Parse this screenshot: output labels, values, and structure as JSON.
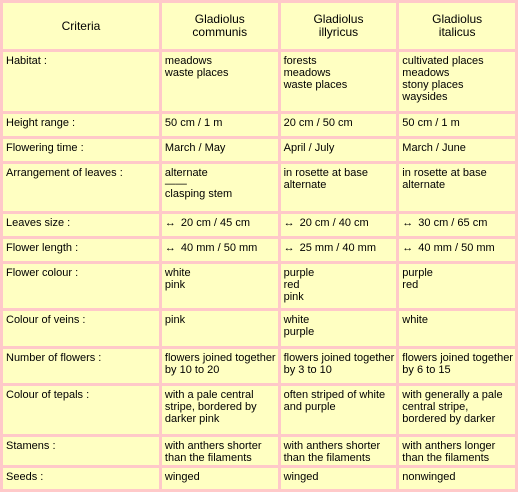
{
  "header": {
    "criteria": "Criteria",
    "species": [
      {
        "line1": "Gladiolus",
        "line2": "communis"
      },
      {
        "line1": "Gladiolus",
        "line2": "illyricus"
      },
      {
        "line1": "Gladiolus",
        "line2": "italicus"
      }
    ]
  },
  "rows": [
    {
      "label": "Habitat :",
      "values": [
        [
          "meadows",
          "waste places"
        ],
        [
          "forests",
          "meadows",
          "waste places"
        ],
        [
          "cultivated places",
          "meadows",
          "stony places",
          "waysides"
        ]
      ]
    },
    {
      "label": "Height range :",
      "values": [
        [
          "50 cm / 1 m"
        ],
        [
          "20 cm / 50 cm"
        ],
        [
          "50 cm / 1 m"
        ]
      ]
    },
    {
      "label": "Flowering time :",
      "values": [
        [
          "March / May"
        ],
        [
          "April / July"
        ],
        [
          "March / June"
        ]
      ]
    },
    {
      "label": "Arrangement of leaves :",
      "values": [
        [
          "alternate",
          "——",
          "clasping stem"
        ],
        [
          "in rosette at base",
          "alternate"
        ],
        [
          "in rosette at base",
          "alternate"
        ]
      ]
    },
    {
      "label": "Leaves size :",
      "arrow": "↔",
      "values": [
        [
          "20 cm / 45 cm"
        ],
        [
          "20 cm / 40 cm"
        ],
        [
          "30 cm / 65 cm"
        ]
      ]
    },
    {
      "label": "Flower length :",
      "arrow": "↔",
      "values": [
        [
          "40 mm / 50 mm"
        ],
        [
          "25 mm / 40 mm"
        ],
        [
          "40 mm / 50 mm"
        ]
      ]
    },
    {
      "label": "Flower colour :",
      "values": [
        [
          "white",
          "pink"
        ],
        [
          "purple",
          "red",
          "pink"
        ],
        [
          "purple",
          "red"
        ]
      ]
    },
    {
      "label": "Colour of veins :",
      "values": [
        [
          "pink"
        ],
        [
          "white",
          "purple"
        ],
        [
          "white"
        ]
      ]
    },
    {
      "label": "Number of flowers :",
      "values": [
        [
          "flowers joined together",
          "by 10 to 20"
        ],
        [
          "flowers joined together",
          "by 3 to 10"
        ],
        [
          "flowers joined together",
          "by 6 to 15"
        ]
      ]
    },
    {
      "label": "Colour of tepals :",
      "values": [
        [
          "with a pale central",
          "stripe, bordered by",
          "darker pink"
        ],
        [
          "often striped of white",
          "and purple"
        ],
        [
          "with generally a pale",
          "central stripe,",
          "bordered by darker"
        ]
      ]
    },
    {
      "label": "Stamens :",
      "values": [
        [
          "with anthers shorter",
          "than the filaments"
        ],
        [
          "with anthers shorter",
          "than the filaments"
        ],
        [
          "with anthers longer",
          "than the filaments"
        ]
      ]
    },
    {
      "label": "Seeds :",
      "values": [
        [
          "winged"
        ],
        [
          "winged"
        ],
        [
          "nonwinged"
        ]
      ]
    }
  ]
}
